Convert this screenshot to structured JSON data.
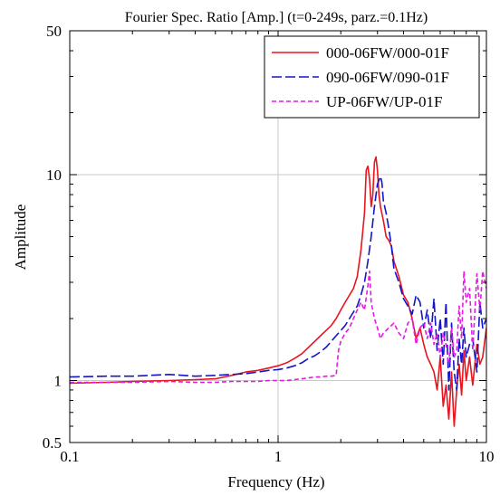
{
  "chart_data": {
    "type": "line",
    "title": "Fourier Spec. Ratio [Amp.] (t=0-249s, parz.=0.1Hz)",
    "xlabel": "Frequency (Hz)",
    "ylabel": "Amplitude",
    "x_scale": "log",
    "y_scale": "log",
    "xlim": [
      0.1,
      10
    ],
    "ylim": [
      0.5,
      50
    ],
    "x_ticks": [
      {
        "value": 0.1,
        "label": "0.1"
      },
      {
        "value": 1,
        "label": "1"
      },
      {
        "value": 10,
        "label": "10"
      }
    ],
    "y_ticks": [
      {
        "value": 0.5,
        "label": "0.5"
      },
      {
        "value": 1,
        "label": "1"
      },
      {
        "value": 10,
        "label": "10"
      },
      {
        "value": 50,
        "label": "50"
      }
    ],
    "grid": true,
    "legend_position": "top-right",
    "series": [
      {
        "name": "000-06FW/000-01F",
        "color": "#e8141e",
        "dash": "solid",
        "x": [
          0.1,
          0.15,
          0.2,
          0.3,
          0.4,
          0.5,
          0.6,
          0.7,
          0.8,
          0.9,
          1.0,
          1.1,
          1.2,
          1.3,
          1.4,
          1.5,
          1.6,
          1.7,
          1.8,
          1.9,
          2.0,
          2.1,
          2.2,
          2.3,
          2.4,
          2.5,
          2.6,
          2.65,
          2.7,
          2.75,
          2.8,
          2.85,
          2.9,
          2.95,
          3.0,
          3.05,
          3.1,
          3.2,
          3.3,
          3.4,
          3.5,
          3.6,
          3.8,
          4.0,
          4.2,
          4.4,
          4.6,
          4.8,
          5.0,
          5.2,
          5.4,
          5.6,
          5.8,
          6.0,
          6.2,
          6.4,
          6.6,
          6.8,
          7.0,
          7.2,
          7.4,
          7.6,
          7.8,
          8.0,
          8.3,
          8.6,
          9.0,
          9.3,
          9.6,
          10.0
        ],
        "y": [
          0.97,
          0.98,
          0.99,
          1.0,
          1.01,
          1.02,
          1.06,
          1.1,
          1.12,
          1.15,
          1.18,
          1.22,
          1.28,
          1.35,
          1.45,
          1.55,
          1.65,
          1.75,
          1.85,
          2.0,
          2.2,
          2.4,
          2.6,
          2.8,
          3.2,
          4.3,
          6.5,
          10.5,
          11.0,
          9.5,
          7.0,
          8.0,
          11.5,
          12.2,
          10.5,
          8.0,
          7.0,
          6.0,
          5.0,
          4.8,
          4.5,
          3.8,
          3.2,
          2.6,
          2.4,
          2.0,
          1.6,
          1.8,
          1.5,
          1.3,
          1.2,
          1.1,
          0.9,
          1.3,
          0.75,
          0.95,
          0.65,
          1.1,
          0.6,
          0.9,
          1.2,
          0.85,
          1.4,
          1.0,
          1.3,
          0.95,
          1.5,
          1.2,
          1.3,
          1.8
        ]
      },
      {
        "name": "090-06FW/090-01F",
        "color": "#1414c8",
        "dash": "longdash",
        "x": [
          0.1,
          0.15,
          0.2,
          0.3,
          0.4,
          0.5,
          0.6,
          0.7,
          0.8,
          0.9,
          1.0,
          1.1,
          1.2,
          1.3,
          1.4,
          1.5,
          1.6,
          1.7,
          1.8,
          1.9,
          2.0,
          2.1,
          2.2,
          2.3,
          2.4,
          2.5,
          2.6,
          2.7,
          2.8,
          2.9,
          3.0,
          3.1,
          3.15,
          3.2,
          3.3,
          3.4,
          3.5,
          3.6,
          3.8,
          4.0,
          4.2,
          4.4,
          4.6,
          4.8,
          5.0,
          5.2,
          5.4,
          5.6,
          5.8,
          6.0,
          6.2,
          6.4,
          6.6,
          6.8,
          7.0,
          7.2,
          7.4,
          7.6,
          7.8,
          8.0,
          8.3,
          8.6,
          9.0,
          9.3,
          9.6,
          10.0
        ],
        "y": [
          1.04,
          1.05,
          1.05,
          1.07,
          1.05,
          1.06,
          1.07,
          1.08,
          1.1,
          1.12,
          1.13,
          1.15,
          1.18,
          1.22,
          1.28,
          1.32,
          1.38,
          1.45,
          1.55,
          1.65,
          1.75,
          1.85,
          2.0,
          2.15,
          2.3,
          2.6,
          3.0,
          3.8,
          5.0,
          7.0,
          9.0,
          9.8,
          9.2,
          7.5,
          6.5,
          5.5,
          4.5,
          3.5,
          3.0,
          2.5,
          2.3,
          2.1,
          2.6,
          2.4,
          1.8,
          2.2,
          1.6,
          2.5,
          1.4,
          2.0,
          1.2,
          2.4,
          0.9,
          1.9,
          1.1,
          0.9,
          1.6,
          1.2,
          1.8,
          1.3,
          1.5,
          1.6,
          1.1,
          2.4,
          1.8,
          2.0
        ]
      },
      {
        "name": "UP-06FW/UP-01F",
        "color": "#e619e6",
        "dash": "dashed",
        "x": [
          0.1,
          0.15,
          0.2,
          0.3,
          0.4,
          0.5,
          0.6,
          0.7,
          0.8,
          0.9,
          1.0,
          1.1,
          1.2,
          1.3,
          1.4,
          1.5,
          1.6,
          1.7,
          1.8,
          1.9,
          1.95,
          2.0,
          2.1,
          2.2,
          2.3,
          2.4,
          2.5,
          2.6,
          2.7,
          2.75,
          2.8,
          2.9,
          3.0,
          3.1,
          3.2,
          3.4,
          3.6,
          3.8,
          4.0,
          4.2,
          4.4,
          4.6,
          4.8,
          5.0,
          5.2,
          5.4,
          5.6,
          5.8,
          6.0,
          6.2,
          6.4,
          6.6,
          6.8,
          7.0,
          7.2,
          7.4,
          7.6,
          7.8,
          8.0,
          8.3,
          8.6,
          9.0,
          9.3,
          9.6,
          10.0
        ],
        "y": [
          0.98,
          0.98,
          0.98,
          0.99,
          0.98,
          0.98,
          0.99,
          0.99,
          0.99,
          1.0,
          1.0,
          1.0,
          1.01,
          1.02,
          1.03,
          1.04,
          1.04,
          1.05,
          1.05,
          1.06,
          1.4,
          1.55,
          1.7,
          1.8,
          2.0,
          2.2,
          2.4,
          2.2,
          2.9,
          3.4,
          2.4,
          2.0,
          1.8,
          1.6,
          1.7,
          1.8,
          1.9,
          1.7,
          1.6,
          1.9,
          2.0,
          1.5,
          1.8,
          1.9,
          1.6,
          1.9,
          1.5,
          1.7,
          1.3,
          1.7,
          1.5,
          1.2,
          1.8,
          1.3,
          1.4,
          2.3,
          1.6,
          3.4,
          2.4,
          2.8,
          1.4,
          3.3,
          2.2,
          3.4,
          2.8
        ]
      }
    ]
  }
}
